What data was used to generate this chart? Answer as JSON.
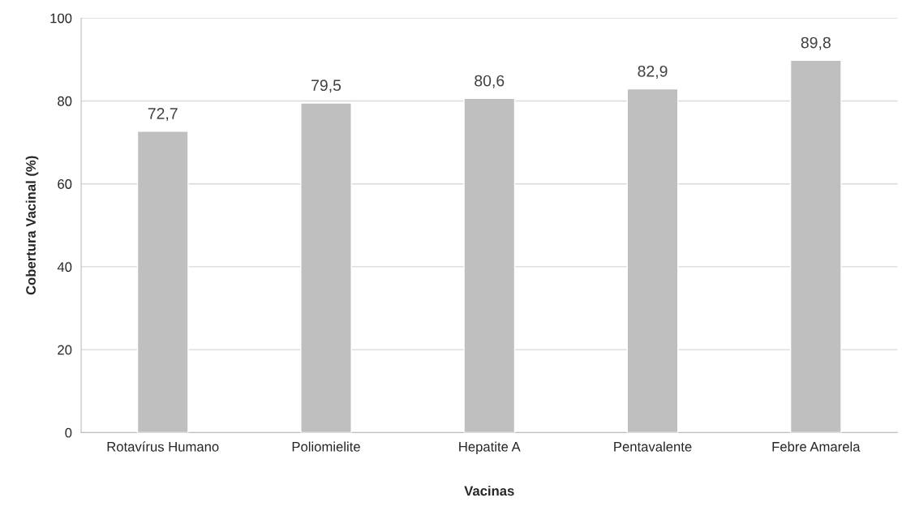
{
  "chart_data": {
    "type": "bar",
    "xlabel": "Vacinas",
    "ylabel": "Cobertura Vacinal (%)",
    "categories": [
      "Rotavírus Humano",
      "Poliomielite",
      "Hepatite A",
      "Pentavalente",
      "Febre Amarela"
    ],
    "values": [
      72.7,
      79.5,
      80.6,
      82.9,
      89.8
    ],
    "value_labels": [
      "72,7",
      "79,5",
      "80,6",
      "82,9",
      "89,8"
    ],
    "color": "#bfbfbf",
    "ylim": [
      0,
      100
    ],
    "yticks": [
      0,
      20,
      40,
      60,
      80,
      100
    ],
    "grid": "y"
  }
}
